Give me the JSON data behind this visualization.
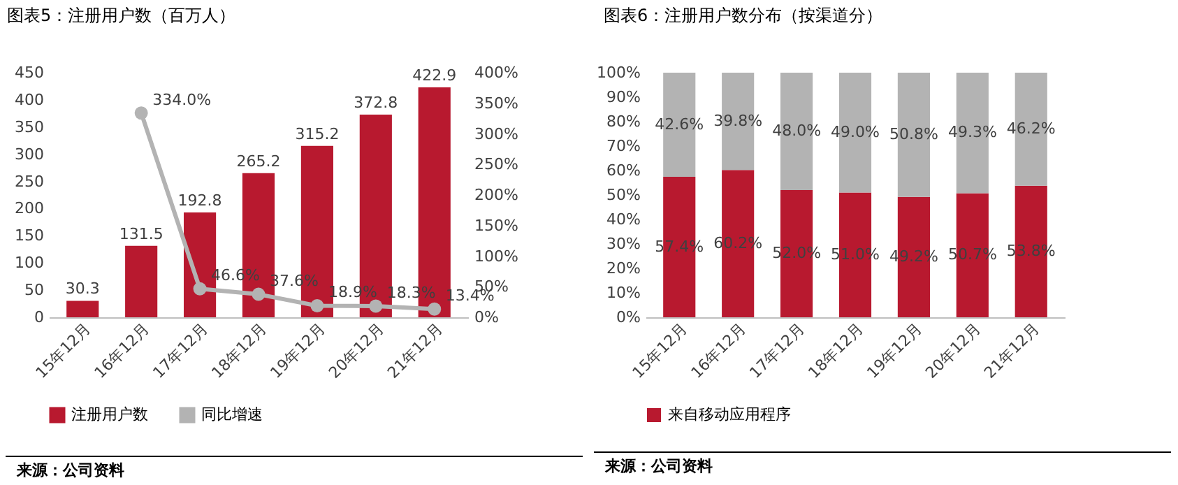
{
  "chart_data": [
    {
      "type": "bar",
      "title": "图表5：注册用户数（百万人）",
      "categories": [
        "15年12月",
        "16年12月",
        "17年12月",
        "18年12月",
        "19年12月",
        "20年12月",
        "21年12月"
      ],
      "series": [
        {
          "name": "注册用户数",
          "type": "bar",
          "color": "#b8192f",
          "values": [
            30.3,
            131.5,
            192.8,
            265.2,
            315.2,
            372.8,
            422.9
          ],
          "value_labels": [
            "30.3",
            "131.5",
            "192.8",
            "265.2",
            "315.2",
            "372.8",
            "422.9"
          ]
        },
        {
          "name": "同比增速",
          "type": "line",
          "axis": "y2",
          "color": "#b3b3b3",
          "marker": "circle",
          "values": [
            null,
            334.0,
            46.6,
            37.6,
            18.9,
            18.3,
            13.4
          ],
          "value_labels": [
            null,
            "334.0%",
            "46.6%",
            "37.6%",
            "18.9%",
            "18.3%",
            "13.4%"
          ]
        }
      ],
      "ylim": [
        0,
        450
      ],
      "yticks": [
        0,
        50,
        100,
        150,
        200,
        250,
        300,
        350,
        400,
        450
      ],
      "y2lim": [
        0,
        400
      ],
      "y2ticks": [
        {
          "value": 0,
          "label": "0%"
        },
        {
          "value": 50,
          "label": "50%"
        },
        {
          "value": 100,
          "label": "100%"
        },
        {
          "value": 150,
          "label": "150%"
        },
        {
          "value": 200,
          "label": "200%"
        },
        {
          "value": 250,
          "label": "250%"
        },
        {
          "value": 300,
          "label": "300%"
        },
        {
          "value": 350,
          "label": "350%"
        },
        {
          "value": 400,
          "label": "400%"
        }
      ],
      "grid": false,
      "legend": "bottom",
      "annotations": [
        "来源：公司资料"
      ]
    },
    {
      "type": "bar",
      "stacked": true,
      "title": "图表6：注册用户数分布（按渠道分）",
      "categories": [
        "15年12月",
        "16年12月",
        "17年12月",
        "18年12月",
        "19年12月",
        "20年12月",
        "21年12月"
      ],
      "series": [
        {
          "name": "来自移动应用程序",
          "color": "#b8192f",
          "values": [
            57.4,
            60.2,
            52.0,
            51.0,
            49.2,
            50.7,
            53.8
          ],
          "value_labels": [
            "57.4%",
            "60.2%",
            "52.0%",
            "51.0%",
            "49.2%",
            "50.7%",
            "53.8%"
          ]
        },
        {
          "color": "#b3b3b3",
          "values": [
            42.6,
            39.8,
            48.0,
            49.0,
            50.8,
            49.3,
            46.2
          ],
          "value_labels": [
            "42.6%",
            "39.8%",
            "48.0%",
            "49.0%",
            "50.8%",
            "49.3%",
            "46.2%"
          ]
        }
      ],
      "ylim": [
        0,
        100
      ],
      "yticks": [
        {
          "value": 0,
          "label": "0%"
        },
        {
          "value": 10,
          "label": "10%"
        },
        {
          "value": 20,
          "label": "20%"
        },
        {
          "value": 30,
          "label": "30%"
        },
        {
          "value": 40,
          "label": "40%"
        },
        {
          "value": 50,
          "label": "50%"
        },
        {
          "value": 60,
          "label": "60%"
        },
        {
          "value": 70,
          "label": "70%"
        },
        {
          "value": 80,
          "label": "80%"
        },
        {
          "value": 90,
          "label": "90%"
        },
        {
          "value": 100,
          "label": "100%"
        }
      ],
      "grid": false,
      "legend": "bottom",
      "annotations": [
        "来源：公司资料"
      ]
    }
  ]
}
